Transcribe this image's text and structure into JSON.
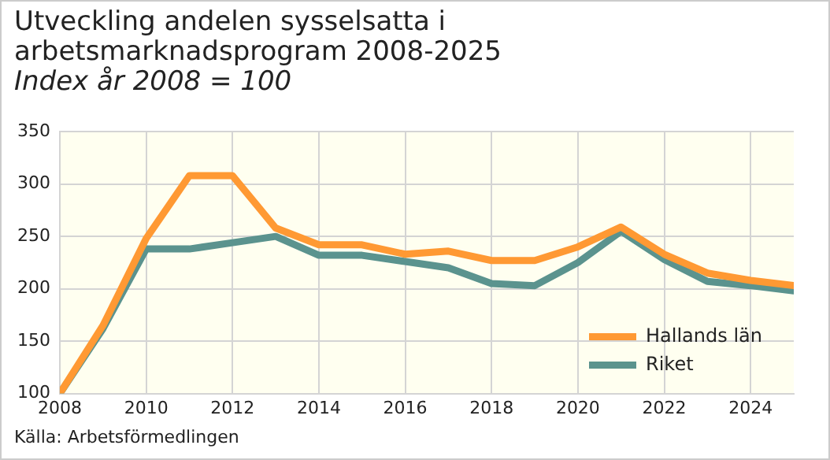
{
  "chart_data": {
    "type": "line",
    "title": "Utveckling andelen sysselsatta i arbetsmarknadsprogram 2008-2025",
    "subtitle": "Index år 2008 = 100",
    "x": [
      2008,
      2009,
      2010,
      2011,
      2012,
      2013,
      2014,
      2015,
      2016,
      2017,
      2018,
      2019,
      2020,
      2021,
      2022,
      2023,
      2024,
      2025
    ],
    "series": [
      {
        "name": "Hallands län",
        "color": "#ff9933",
        "values": [
          100,
          165,
          248,
          308,
          308,
          258,
          242,
          242,
          233,
          236,
          227,
          227,
          240,
          259,
          233,
          215,
          208,
          203
        ]
      },
      {
        "name": "Riket",
        "color": "#5b938e",
        "values": [
          100,
          162,
          238,
          238,
          244,
          250,
          232,
          232,
          226,
          220,
          205,
          203,
          225,
          255,
          228,
          207,
          203,
          198
        ]
      }
    ],
    "xlim": [
      2008,
      2025
    ],
    "xticks": [
      2008,
      2010,
      2012,
      2014,
      2016,
      2018,
      2020,
      2022,
      2024
    ],
    "ylim": [
      100,
      350
    ],
    "yticks": [
      100,
      150,
      200,
      250,
      300,
      350
    ],
    "grid": true,
    "legend": "bottom right",
    "marker": "none",
    "line_style": "solid",
    "annotations": [
      "Källa: Arbetsförmedlingen"
    ]
  }
}
